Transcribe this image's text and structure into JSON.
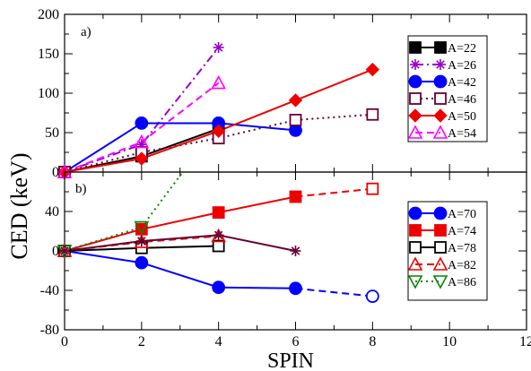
{
  "chart_data": [
    {
      "panel_label": "a)",
      "type": "line",
      "ylabel": "CED (keV)",
      "xlim": [
        0,
        12
      ],
      "ylim": [
        0,
        200
      ],
      "yticks": [
        "0",
        "50",
        "100",
        "150",
        "200"
      ],
      "legend_placement": "top-right",
      "series": [
        {
          "name": "A=22",
          "color": "#000000",
          "marker": "square-filled",
          "dash": "solid",
          "x": [
            0,
            2,
            4
          ],
          "y": [
            0,
            20,
            55
          ]
        },
        {
          "name": "A=26",
          "color": "#9900cc",
          "marker": "star",
          "dash": "dashdot",
          "x": [
            0,
            2,
            4
          ],
          "y": [
            0,
            35,
            158
          ]
        },
        {
          "name": "A=42",
          "color": "#0000ff",
          "marker": "circle-filled",
          "dash": "solid",
          "x": [
            0,
            2,
            4,
            6
          ],
          "y": [
            0,
            62,
            62,
            53
          ]
        },
        {
          "name": "A=46",
          "color": "#660033",
          "marker": "square-open",
          "dash": "dotted",
          "x": [
            0,
            2,
            4,
            6,
            8
          ],
          "y": [
            0,
            25,
            43,
            66,
            73
          ]
        },
        {
          "name": "A=50",
          "color": "#ee0000",
          "marker": "diamond-filled",
          "dash": "solid",
          "x": [
            0,
            2,
            4,
            6,
            8
          ],
          "y": [
            0,
            17,
            52,
            91,
            130
          ]
        },
        {
          "name": "A=54",
          "color": "#ff00ff",
          "marker": "triangle-open",
          "dash": "dashed",
          "x": [
            0,
            2,
            4
          ],
          "y": [
            0,
            38,
            113
          ]
        }
      ]
    },
    {
      "panel_label": "b)",
      "type": "line",
      "xlabel": "SPIN",
      "ylabel": "",
      "xlim": [
        0,
        12
      ],
      "ylim": [
        -80,
        80
      ],
      "xticks": [
        "0",
        "2",
        "4",
        "6",
        "8",
        "10",
        "12"
      ],
      "yticks": [
        "-80",
        "-40",
        "0",
        "40"
      ],
      "legend_placement": "top-right",
      "series": [
        {
          "name": "A=70",
          "color": "#0000ff",
          "marker": "circle-filled",
          "dash": "solid",
          "x": [
            0,
            2,
            4,
            6
          ],
          "y": [
            0,
            -12,
            -37,
            -38
          ],
          "extension": {
            "dash": "dashed",
            "marker": "circle-open",
            "x": [
              6,
              8
            ],
            "y": [
              -38,
              -46
            ]
          }
        },
        {
          "name": "A=74",
          "color": "#ee0000",
          "marker": "square-filled",
          "dash": "solid",
          "x": [
            0,
            2,
            4,
            6
          ],
          "y": [
            0,
            22,
            39,
            55
          ],
          "extension": {
            "dash": "dashed",
            "marker": "square-open",
            "x": [
              6,
              8
            ],
            "y": [
              55,
              63
            ]
          }
        },
        {
          "name": "A=78",
          "color": "#000000",
          "marker": "square-open",
          "dash": "solid",
          "x": [
            0,
            2,
            4
          ],
          "y": [
            0,
            3,
            5
          ]
        },
        {
          "name": "A=82",
          "color": "#ee0000",
          "marker": "triangle-open",
          "dash": "dashed",
          "x": [
            0,
            2,
            4
          ],
          "y": [
            0,
            9,
            15
          ]
        },
        {
          "name": "A=86",
          "color": "#008800",
          "marker": "triangle-down-open",
          "dash": "dotted",
          "x": [
            0,
            2,
            3.3
          ],
          "y": [
            0,
            24,
            92
          ]
        },
        {
          "name": "",
          "legend": false,
          "color": "#660033",
          "marker": "star",
          "dash": "solid",
          "x": [
            0,
            2,
            4,
            6
          ],
          "y": [
            0,
            10,
            16,
            0
          ]
        }
      ]
    }
  ]
}
